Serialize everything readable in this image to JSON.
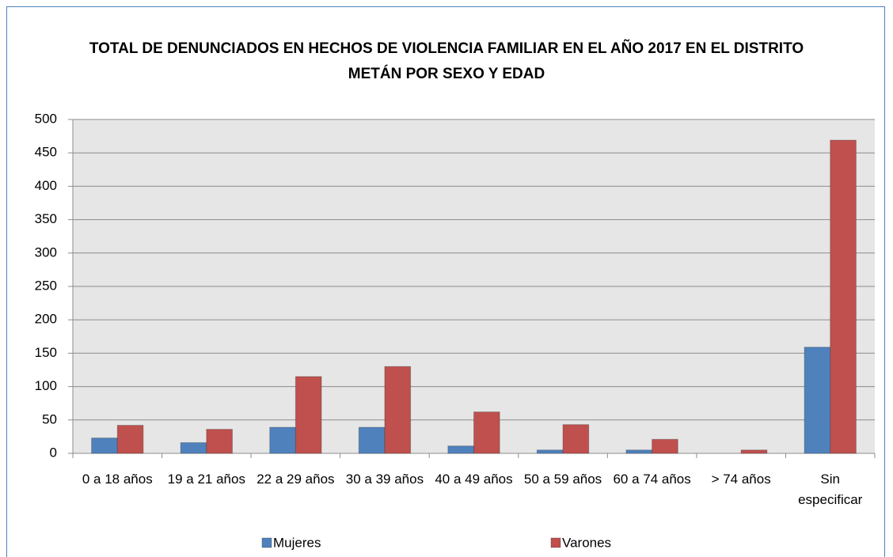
{
  "chart_data": {
    "type": "bar",
    "title": "TOTAL DE DENUNCIADOS EN HECHOS DE VIOLENCIA FAMILIAR EN EL AÑO 2017 EN EL DISTRITO METÁN POR SEXO Y EDAD",
    "categories": [
      "0 a 18 años",
      "19 a 21 años",
      "22 a 29 años",
      "30 a 39 años",
      "40 a 49 años",
      "50 a 59 años",
      "60 a 74 años",
      "> 74 años",
      "Sin especificar"
    ],
    "series": [
      {
        "name": "Mujeres",
        "color": "#4f81bd",
        "values": [
          23,
          16,
          39,
          39,
          11,
          5,
          5,
          0,
          159
        ]
      },
      {
        "name": "Varones",
        "color": "#c0504d",
        "values": [
          42,
          36,
          115,
          130,
          62,
          43,
          21,
          5,
          469
        ]
      }
    ],
    "ylim": [
      0,
      500
    ],
    "yticks": [
      0,
      50,
      100,
      150,
      200,
      250,
      300,
      350,
      400,
      450,
      500
    ],
    "grid": true
  }
}
